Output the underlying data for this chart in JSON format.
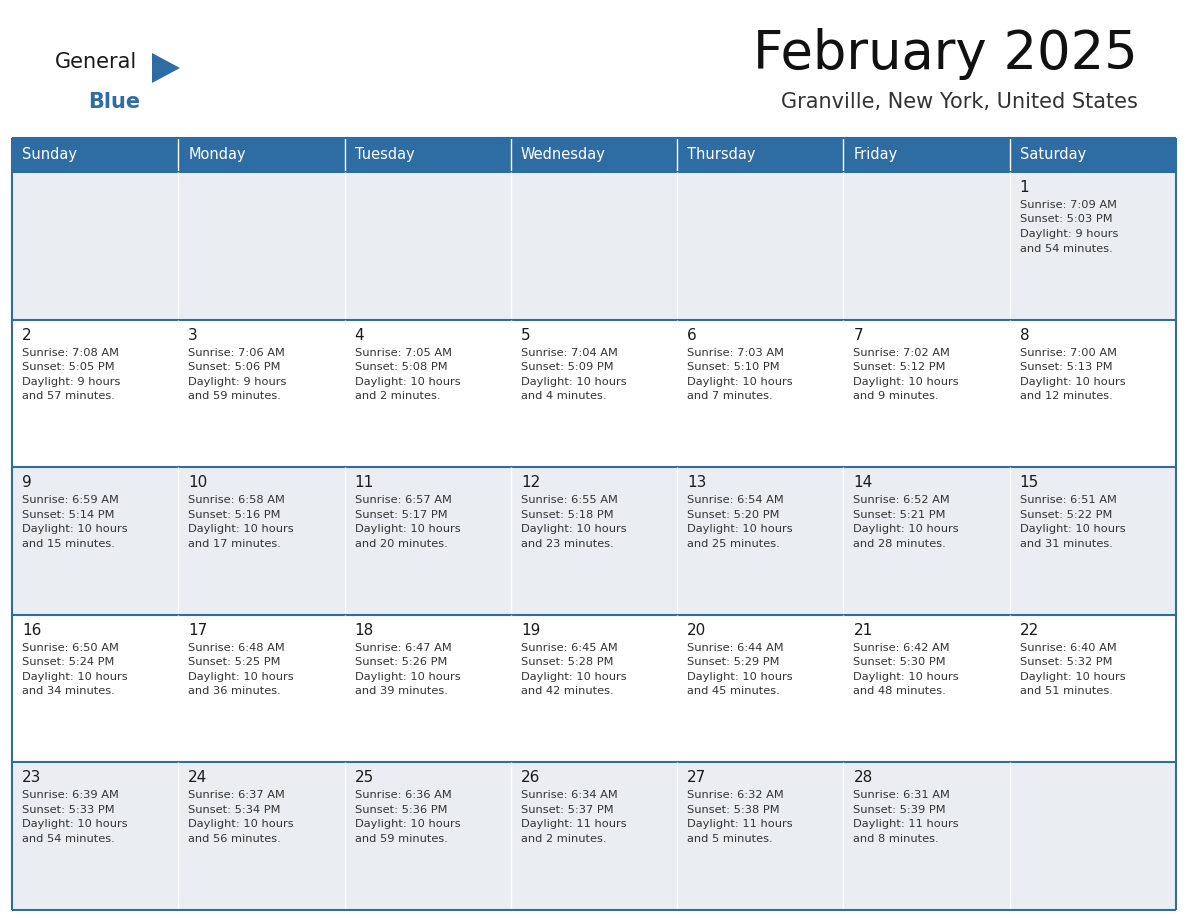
{
  "title": "February 2025",
  "subtitle": "Granville, New York, United States",
  "header_bg": "#2E6DA4",
  "header_text": "#FFFFFF",
  "cell_bg_light": "#EAEEF2",
  "cell_bg_white": "#FFFFFF",
  "row_line_color": "#2E6DA4",
  "day_headers": [
    "Sunday",
    "Monday",
    "Tuesday",
    "Wednesday",
    "Thursday",
    "Friday",
    "Saturday"
  ],
  "logo_general_color": "#1a1a1a",
  "logo_blue_color": "#2E6DA4",
  "calendar_data": [
    [
      null,
      null,
      null,
      null,
      null,
      null,
      {
        "day": "1",
        "sunrise": "7:09 AM",
        "sunset": "5:03 PM",
        "daylight1": "9 hours",
        "daylight2": "and 54 minutes."
      }
    ],
    [
      {
        "day": "2",
        "sunrise": "7:08 AM",
        "sunset": "5:05 PM",
        "daylight1": "9 hours",
        "daylight2": "and 57 minutes."
      },
      {
        "day": "3",
        "sunrise": "7:06 AM",
        "sunset": "5:06 PM",
        "daylight1": "9 hours",
        "daylight2": "and 59 minutes."
      },
      {
        "day": "4",
        "sunrise": "7:05 AM",
        "sunset": "5:08 PM",
        "daylight1": "10 hours",
        "daylight2": "and 2 minutes."
      },
      {
        "day": "5",
        "sunrise": "7:04 AM",
        "sunset": "5:09 PM",
        "daylight1": "10 hours",
        "daylight2": "and 4 minutes."
      },
      {
        "day": "6",
        "sunrise": "7:03 AM",
        "sunset": "5:10 PM",
        "daylight1": "10 hours",
        "daylight2": "and 7 minutes."
      },
      {
        "day": "7",
        "sunrise": "7:02 AM",
        "sunset": "5:12 PM",
        "daylight1": "10 hours",
        "daylight2": "and 9 minutes."
      },
      {
        "day": "8",
        "sunrise": "7:00 AM",
        "sunset": "5:13 PM",
        "daylight1": "10 hours",
        "daylight2": "and 12 minutes."
      }
    ],
    [
      {
        "day": "9",
        "sunrise": "6:59 AM",
        "sunset": "5:14 PM",
        "daylight1": "10 hours",
        "daylight2": "and 15 minutes."
      },
      {
        "day": "10",
        "sunrise": "6:58 AM",
        "sunset": "5:16 PM",
        "daylight1": "10 hours",
        "daylight2": "and 17 minutes."
      },
      {
        "day": "11",
        "sunrise": "6:57 AM",
        "sunset": "5:17 PM",
        "daylight1": "10 hours",
        "daylight2": "and 20 minutes."
      },
      {
        "day": "12",
        "sunrise": "6:55 AM",
        "sunset": "5:18 PM",
        "daylight1": "10 hours",
        "daylight2": "and 23 minutes."
      },
      {
        "day": "13",
        "sunrise": "6:54 AM",
        "sunset": "5:20 PM",
        "daylight1": "10 hours",
        "daylight2": "and 25 minutes."
      },
      {
        "day": "14",
        "sunrise": "6:52 AM",
        "sunset": "5:21 PM",
        "daylight1": "10 hours",
        "daylight2": "and 28 minutes."
      },
      {
        "day": "15",
        "sunrise": "6:51 AM",
        "sunset": "5:22 PM",
        "daylight1": "10 hours",
        "daylight2": "and 31 minutes."
      }
    ],
    [
      {
        "day": "16",
        "sunrise": "6:50 AM",
        "sunset": "5:24 PM",
        "daylight1": "10 hours",
        "daylight2": "and 34 minutes."
      },
      {
        "day": "17",
        "sunrise": "6:48 AM",
        "sunset": "5:25 PM",
        "daylight1": "10 hours",
        "daylight2": "and 36 minutes."
      },
      {
        "day": "18",
        "sunrise": "6:47 AM",
        "sunset": "5:26 PM",
        "daylight1": "10 hours",
        "daylight2": "and 39 minutes."
      },
      {
        "day": "19",
        "sunrise": "6:45 AM",
        "sunset": "5:28 PM",
        "daylight1": "10 hours",
        "daylight2": "and 42 minutes."
      },
      {
        "day": "20",
        "sunrise": "6:44 AM",
        "sunset": "5:29 PM",
        "daylight1": "10 hours",
        "daylight2": "and 45 minutes."
      },
      {
        "day": "21",
        "sunrise": "6:42 AM",
        "sunset": "5:30 PM",
        "daylight1": "10 hours",
        "daylight2": "and 48 minutes."
      },
      {
        "day": "22",
        "sunrise": "6:40 AM",
        "sunset": "5:32 PM",
        "daylight1": "10 hours",
        "daylight2": "and 51 minutes."
      }
    ],
    [
      {
        "day": "23",
        "sunrise": "6:39 AM",
        "sunset": "5:33 PM",
        "daylight1": "10 hours",
        "daylight2": "and 54 minutes."
      },
      {
        "day": "24",
        "sunrise": "6:37 AM",
        "sunset": "5:34 PM",
        "daylight1": "10 hours",
        "daylight2": "and 56 minutes."
      },
      {
        "day": "25",
        "sunrise": "6:36 AM",
        "sunset": "5:36 PM",
        "daylight1": "10 hours",
        "daylight2": "and 59 minutes."
      },
      {
        "day": "26",
        "sunrise": "6:34 AM",
        "sunset": "5:37 PM",
        "daylight1": "11 hours",
        "daylight2": "and 2 minutes."
      },
      {
        "day": "27",
        "sunrise": "6:32 AM",
        "sunset": "5:38 PM",
        "daylight1": "11 hours",
        "daylight2": "and 5 minutes."
      },
      {
        "day": "28",
        "sunrise": "6:31 AM",
        "sunset": "5:39 PM",
        "daylight1": "11 hours",
        "daylight2": "and 8 minutes."
      },
      null
    ]
  ]
}
